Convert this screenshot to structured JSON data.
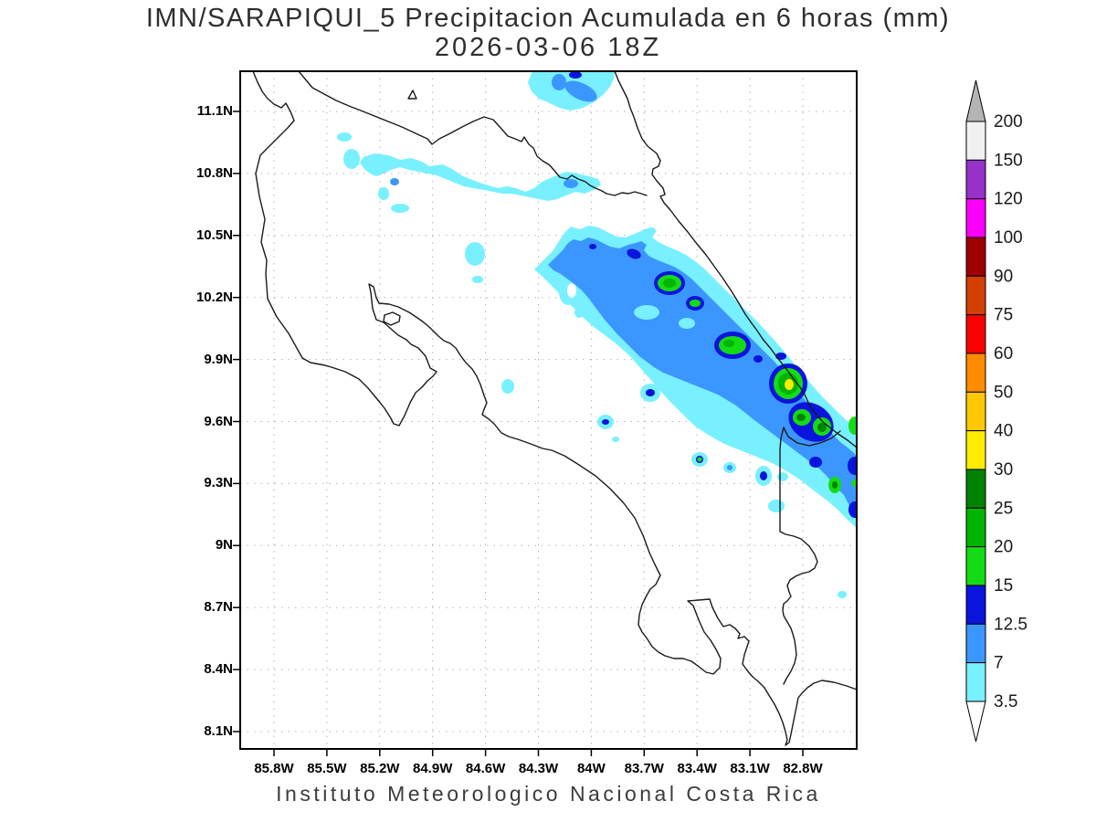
{
  "title": {
    "line1": "IMN/SARAPIQUI_5 Precipitacion Acumulada en 6 horas (mm)",
    "line2": "2026-03-06 18Z"
  },
  "footer": "Instituto Meteorologico Nacional Costa Rica",
  "axes": {
    "lat_labels": [
      "11.1N",
      "10.8N",
      "10.5N",
      "10.2N",
      "9.9N",
      "9.6N",
      "9.3N",
      "9N",
      "8.7N",
      "8.4N",
      "8.1N"
    ],
    "lon_labels": [
      "85.8W",
      "85.5W",
      "85.2W",
      "84.9W",
      "84.6W",
      "84.3W",
      "84W",
      "83.7W",
      "83.4W",
      "83.1W",
      "82.8W"
    ]
  },
  "colorbar": {
    "boundary_labels": [
      "200",
      "150",
      "120",
      "100",
      "90",
      "75",
      "60",
      "50",
      "40",
      "30",
      "25",
      "20",
      "15",
      "12.5",
      "7",
      "3.5"
    ],
    "segment_colors_top_to_bottom": [
      "#f0f0f0",
      "#9632c8",
      "#fa00fa",
      "#a00000",
      "#d24000",
      "#fa0000",
      "#ff8c00",
      "#ffc800",
      "#ffec00",
      "#008200",
      "#00b400",
      "#14dc14",
      "#0a14dc",
      "#3c96ff",
      "#78f0ff"
    ],
    "above_arrow_color": "#b4b4b4",
    "below_arrow_color": "#ffffff"
  },
  "chart_data": {
    "type": "heatmap",
    "title": "IMN/SARAPIQUI_5 Precipitacion Acumulada en 6 horas (mm)",
    "subtitle": "2026-03-06 18Z",
    "variable": "6-hour accumulated precipitation",
    "units": "mm",
    "x_ticks": [
      "85.8W",
      "85.5W",
      "85.2W",
      "84.9W",
      "84.6W",
      "84.3W",
      "84W",
      "83.7W",
      "83.4W",
      "83.1W",
      "82.8W"
    ],
    "y_ticks": [
      "11.1N",
      "10.8N",
      "10.5N",
      "10.2N",
      "9.9N",
      "9.6N",
      "9.3N",
      "9N",
      "8.7N",
      "8.4N",
      "8.1N"
    ],
    "lon_range_deg_west": [
      86.0,
      82.5
    ],
    "lat_range_deg_north": [
      8.0,
      11.3
    ],
    "contour_levels_mm": [
      3.5,
      7,
      12.5,
      15,
      20,
      25,
      30,
      40,
      50,
      60,
      75,
      90,
      100,
      120,
      150,
      200
    ],
    "palette_low_to_high": [
      "#78f0ff",
      "#3c96ff",
      "#0a14dc",
      "#14dc14",
      "#00b400",
      "#008200",
      "#ffec00",
      "#ffc800",
      "#ff8c00",
      "#fa0000",
      "#d24000",
      "#a00000",
      "#fa00fa",
      "#9632c8",
      "#f0f0f0"
    ],
    "grid": true,
    "legend_position": "right",
    "features": [
      {
        "name": "caribbean-coastal-system",
        "desc": "Main SW-NE precipitation band along the Caribbean slope and coast from ~10.4N 84.1W to ~9.4N 82.6W, mostly 7-15 mm with embedded 15-30 mm cells",
        "max_mm": 35,
        "max_location": "9.8N 82.9W"
      },
      {
        "name": "embedded-cells",
        "desc": "Green cores 15-25 mm near 10.25N 83.6W, 10.1N 83.3W and 9.55N 82.7W; yellow core 30-40 mm near 9.8N 82.9W"
      },
      {
        "name": "northern-lowland-band",
        "desc": "Elongated light band 3.5-7 mm (spots 7-12.5) across 10.7-10.8N between 85.2W and 83.95W",
        "max_mm": 12
      },
      {
        "name": "north-edge-patch",
        "desc": "Patch 3.5-12.5 mm cut by the top frame near 11.2N 84.0-84.45W",
        "max_mm": 15
      },
      {
        "name": "scattered-cells",
        "desc": "Isolated 3.5-15 mm dots over the central valley and southern Caribbean foothills (e.g. 9.6N 83.7W, 9.4N 83.2W, 8.8N 82.6W)",
        "max_mm": 15
      }
    ]
  }
}
